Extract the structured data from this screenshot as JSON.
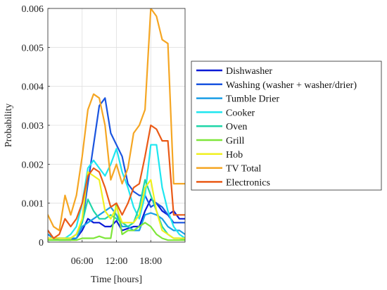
{
  "chart_data": {
    "type": "line",
    "xlabel": "Time [hours]",
    "ylabel": "Probability",
    "xlim": [
      0,
      24
    ],
    "ylim": [
      0,
      0.006
    ],
    "grid": true,
    "legend_position": "right",
    "x_ticks": [
      {
        "value": 6,
        "label": "06:00"
      },
      {
        "value": 12,
        "label": "12:00"
      },
      {
        "value": 18,
        "label": "18:00"
      }
    ],
    "y_ticks": [
      {
        "value": 0,
        "label": "0"
      },
      {
        "value": 0.001,
        "label": "0.001"
      },
      {
        "value": 0.002,
        "label": "0.002"
      },
      {
        "value": 0.003,
        "label": "0.003"
      },
      {
        "value": 0.004,
        "label": "0.004"
      },
      {
        "value": 0.005,
        "label": "0.005"
      },
      {
        "value": 0.006,
        "label": "0.006"
      }
    ],
    "x": [
      0,
      1,
      2,
      3,
      4,
      5,
      6,
      7,
      8,
      9,
      10,
      11,
      12,
      13,
      14,
      15,
      16,
      17,
      18,
      19,
      20,
      21,
      22,
      23,
      24
    ],
    "series": [
      {
        "name": "Dishwasher",
        "color": "#0a1ad6",
        "values": [
          0.0002,
          0.0001,
          5e-05,
          5e-05,
          5e-05,
          0.0001,
          0.0003,
          0.0006,
          0.0005,
          0.0005,
          0.0004,
          0.0004,
          0.00055,
          0.0003,
          0.00035,
          0.0004,
          0.0004,
          0.0008,
          0.0011,
          0.001,
          0.0008,
          0.0007,
          0.0008,
          0.0006,
          0.0006
        ]
      },
      {
        "name": "Washing (washer + washer/drier)",
        "color": "#1a55e0",
        "values": [
          0.0003,
          0.0001,
          0.0001,
          0.0001,
          0.0001,
          0.0002,
          0.0005,
          0.0015,
          0.0025,
          0.0035,
          0.0037,
          0.0028,
          0.0025,
          0.0022,
          0.0015,
          0.0013,
          0.0012,
          0.0012,
          0.0009,
          0.001,
          0.0009,
          0.0007,
          0.0005,
          0.0005,
          0.0005
        ]
      },
      {
        "name": "Tumble Drier",
        "color": "#1a9ee6",
        "values": [
          0.0002,
          0.0001,
          0.0001,
          0.0001,
          0.0001,
          0.0001,
          0.0004,
          0.0005,
          0.0006,
          0.0007,
          0.0008,
          0.0009,
          0.0007,
          0.0004,
          0.0004,
          0.0003,
          0.0003,
          0.0007,
          0.00075,
          0.0007,
          0.0006,
          0.0004,
          0.0003,
          0.0003,
          0.0002
        ]
      },
      {
        "name": "Cooker",
        "color": "#1ee6f0",
        "values": [
          0.0001,
          0.0001,
          0.0001,
          0.0001,
          0.0002,
          0.0004,
          0.001,
          0.0019,
          0.0021,
          0.0019,
          0.0017,
          0.002,
          0.0024,
          0.0018,
          0.0014,
          0.0009,
          0.0006,
          0.0012,
          0.0025,
          0.0025,
          0.0014,
          0.0008,
          0.0004,
          0.0002,
          0.0001
        ]
      },
      {
        "name": "Oven",
        "color": "#20d6a8",
        "values": [
          5e-05,
          5e-05,
          5e-05,
          5e-05,
          0.0001,
          0.0002,
          0.0005,
          0.0011,
          0.0008,
          0.0006,
          0.0006,
          0.0007,
          0.0006,
          0.0005,
          0.0004,
          0.0005,
          0.0009,
          0.0016,
          0.0012,
          0.0008,
          0.0004,
          0.0002,
          0.0001,
          0.0001,
          5e-05
        ]
      },
      {
        "name": "Grill",
        "color": "#7ee63a",
        "values": [
          5e-05,
          5e-05,
          5e-05,
          5e-05,
          5e-05,
          5e-05,
          0.0001,
          0.0001,
          0.0001,
          0.00015,
          0.0001,
          0.0001,
          0.001,
          0.0002,
          0.0003,
          0.0003,
          0.0004,
          0.0005,
          0.0004,
          0.0002,
          0.0001,
          5e-05,
          5e-05,
          5e-05,
          5e-05
        ]
      },
      {
        "name": "Hob",
        "color": "#f0f020",
        "values": [
          0.0001,
          0.0001,
          0.0001,
          0.0001,
          0.0001,
          0.0002,
          0.0006,
          0.0018,
          0.0017,
          0.0016,
          0.0008,
          0.0006,
          0.0009,
          0.0005,
          0.0005,
          0.0005,
          0.0007,
          0.0014,
          0.0016,
          0.0008,
          0.0003,
          0.0002,
          0.0001,
          0.0001,
          0.0001
        ]
      },
      {
        "name": "TV Total",
        "color": "#f5a623",
        "values": [
          0.0007,
          0.0004,
          0.0003,
          0.0012,
          0.0007,
          0.0012,
          0.0022,
          0.0034,
          0.0038,
          0.0037,
          0.003,
          0.0016,
          0.002,
          0.0015,
          0.0019,
          0.0028,
          0.003,
          0.0034,
          0.006,
          0.0058,
          0.0052,
          0.0051,
          0.0015,
          0.0015,
          0.0015
        ]
      },
      {
        "name": "Electronics",
        "color": "#ea5a17",
        "values": [
          0.0003,
          0.0001,
          0.0002,
          0.0006,
          0.0004,
          0.0006,
          0.001,
          0.0017,
          0.0019,
          0.0018,
          0.0014,
          0.0009,
          0.001,
          0.0007,
          0.001,
          0.0014,
          0.0015,
          0.0022,
          0.003,
          0.0029,
          0.0026,
          0.0026,
          0.0007,
          0.0007,
          0.0007
        ]
      }
    ]
  }
}
